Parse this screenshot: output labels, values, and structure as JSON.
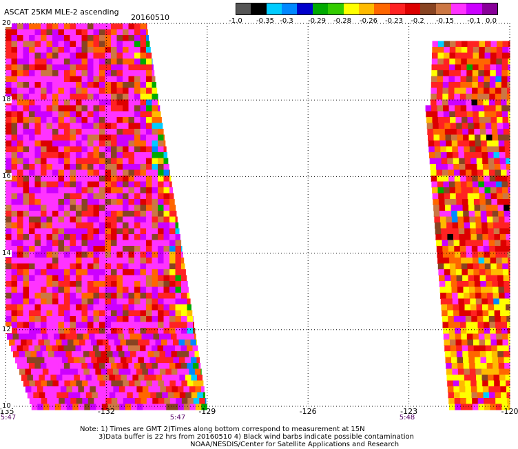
{
  "header": {
    "title": "ASCAT 25KM MLE-2 ascending",
    "date": "20160510"
  },
  "legend": {
    "colors": [
      "#555555",
      "#000000",
      "#00ccff",
      "#0088ff",
      "#0000cc",
      "#00aa00",
      "#33cc00",
      "#ffff00",
      "#ffbb00",
      "#ff6600",
      "#ff2222",
      "#dd0000",
      "#884422",
      "#cc7744",
      "#ff33ff",
      "#cc00ff",
      "#880099"
    ],
    "ticks": [
      "-1.0",
      "-0.35",
      "-0.3",
      "-0.29",
      "-0.28",
      "-0.26",
      "-0.23",
      "-0.2",
      "-0.15",
      "-0.1",
      "0.0"
    ]
  },
  "axes": {
    "x_ticks": [
      "-135",
      "-132",
      "-129",
      "-126",
      "-123",
      "-120"
    ],
    "y_ticks": [
      "20",
      "18",
      "16",
      "14",
      "12",
      "10"
    ],
    "xlim": [
      -135,
      -120
    ],
    "ylim": [
      10,
      20
    ]
  },
  "pass_times": [
    "5:47",
    "5:47",
    "5:48"
  ],
  "notes": {
    "line1": "Note: 1) Times are GMT 2)Times along bottom correspond to measurement at 15N",
    "line2": "3)Data buffer is 22 hrs from 20160510 4) Black wind barbs indicate possible contamination",
    "line3": "NOAA/NESDIS/Center for Satellite Applications and Research"
  },
  "swaths": {
    "west": {
      "top_right_lon": -130.8,
      "bottom_right_lon": -129.0,
      "top_left_lon": -135,
      "bottom_left_lon": -134.2
    },
    "east": {
      "top_left_lon": -122.7,
      "bottom_left_lon": -121.8,
      "right_lon": -120
    }
  }
}
